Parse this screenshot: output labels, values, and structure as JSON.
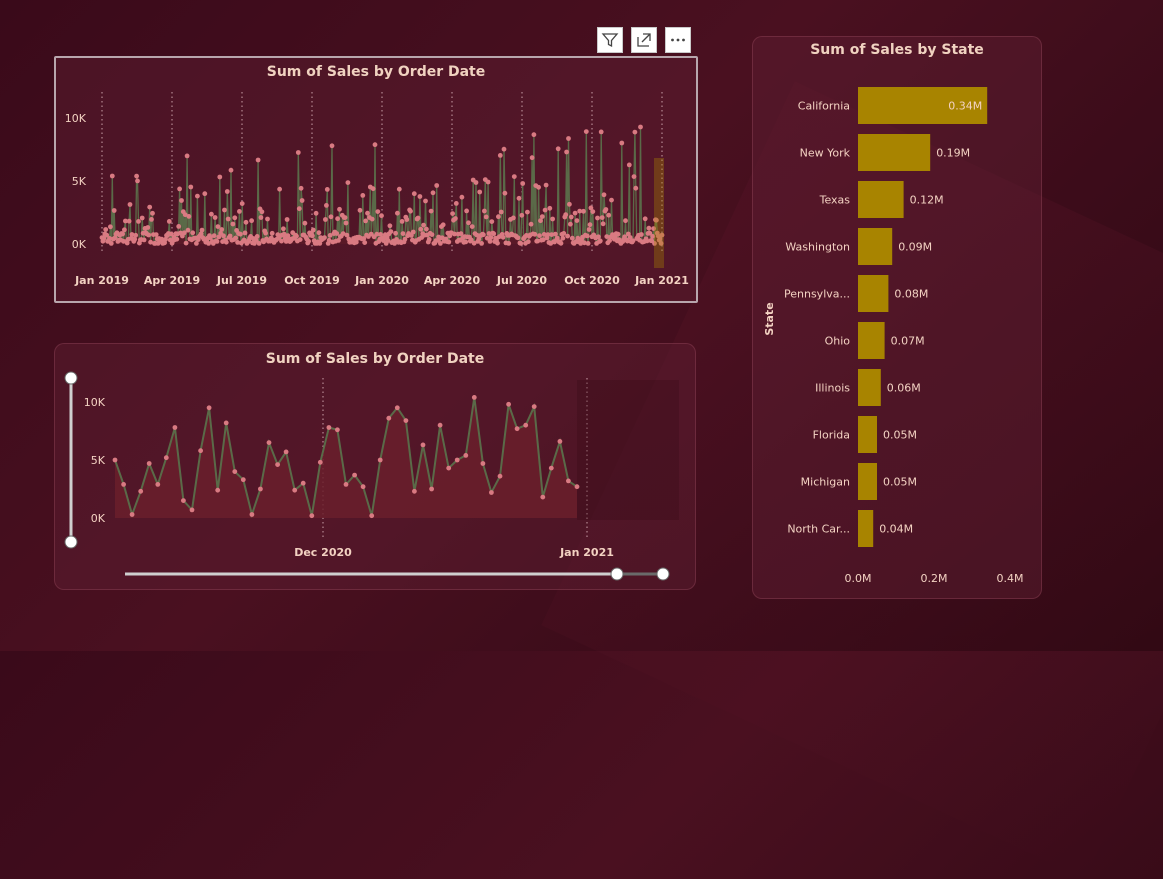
{
  "visual_header": {
    "filter_icon": "filter-icon",
    "focus_icon": "focus-mode-icon",
    "more_icon": "more-options-icon"
  },
  "chart_data": [
    {
      "type": "line",
      "title": "Sum of Sales by Order Date",
      "x_ticks": [
        "Jan 2019",
        "Apr 2019",
        "Jul 2019",
        "Oct 2019",
        "Jan 2020",
        "Apr 2020",
        "Jul 2020",
        "Oct 2020",
        "Jan 2021"
      ],
      "y_ticks": [
        "0K",
        "5K",
        "10K"
      ],
      "ylim": [
        0,
        10000
      ],
      "x": [
        "2019-01",
        "2019-04",
        "2019-07",
        "2019-10",
        "2020-01",
        "2020-04",
        "2020-07",
        "2020-10",
        "2021-01"
      ],
      "series": [
        {
          "values": [
            2200,
            9300,
            6700,
            8300,
            7900,
            5900,
            11600,
            10700,
            9600
          ]
        }
      ],
      "colors": {
        "line": "#5a6a48",
        "marker": "#d97a82",
        "area": "#5a1a28"
      }
    },
    {
      "type": "area",
      "title": "Sum of Sales by Order Date",
      "x_ticks": [
        "Dec 2020",
        "Jan 2021"
      ],
      "y_ticks": [
        "0K",
        "5K",
        "10K"
      ],
      "ylim": [
        0,
        10000
      ],
      "series": [
        {
          "values": [
            5000,
            2900,
            300,
            2300,
            4700,
            2900,
            5200,
            7800,
            1500,
            700,
            5800,
            9500,
            2400,
            8200,
            4000,
            3300,
            300,
            2500,
            6500,
            4600,
            5700,
            2400,
            3000,
            200,
            4800,
            7800,
            7600,
            2900,
            3700,
            2700,
            200,
            5000,
            8600,
            9500,
            8400,
            2300,
            6300,
            2500,
            8000,
            4300,
            5000,
            5400,
            10400,
            4700,
            2200,
            3600,
            9800,
            7700,
            8000,
            9600,
            1800,
            4300,
            6600,
            3200,
            2700
          ]
        }
      ],
      "colors": {
        "line": "#5a6a48",
        "marker": "#d97a82",
        "area": "#6a1f2c"
      }
    },
    {
      "type": "bar",
      "orientation": "horizontal",
      "title": "Sum of Sales by State",
      "ylabel": "State",
      "categories": [
        "California",
        "New York",
        "Texas",
        "Washington",
        "Pennsylva...",
        "Ohio",
        "Illinois",
        "Florida",
        "Michigan",
        "North Car..."
      ],
      "values": [
        0.34,
        0.19,
        0.12,
        0.09,
        0.08,
        0.07,
        0.06,
        0.05,
        0.05,
        0.04
      ],
      "data_labels": [
        "0.34M",
        "0.19M",
        "0.12M",
        "0.09M",
        "0.08M",
        "0.07M",
        "0.06M",
        "0.05M",
        "0.05M",
        "0.04M"
      ],
      "x_ticks": [
        "0.0M",
        "0.2M",
        "0.4M"
      ],
      "xlim": [
        0,
        0.4
      ],
      "colors": {
        "bar": "#a88400"
      }
    }
  ]
}
